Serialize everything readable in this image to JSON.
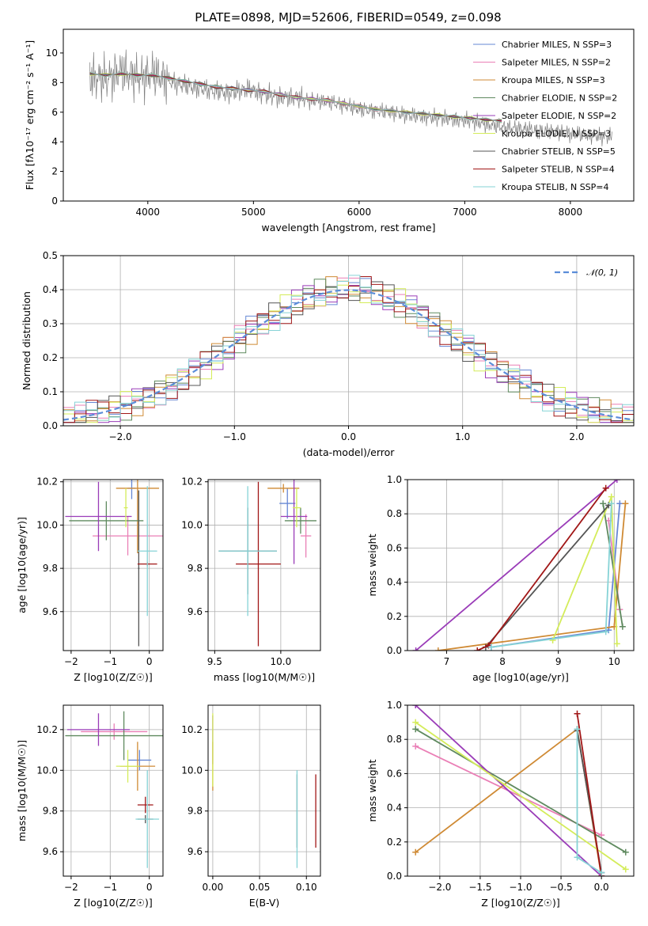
{
  "figure": {
    "title": "PLATE=0898, MJD=52606, FIBERID=0549, z=0.098"
  },
  "chart_data": [
    {
      "panel": "spectrum",
      "type": "line",
      "xlabel": "wavelength [Angstrom, rest frame]",
      "ylabel": "Flux [fλ10⁻¹⁷ erg cm⁻² s⁻¹ A⁻¹]",
      "xlim": [
        3200,
        8600
      ],
      "ylim": [
        0,
        11.6
      ],
      "xticks": [
        4000,
        5000,
        6000,
        7000,
        8000
      ],
      "yticks": [
        0,
        2,
        4,
        6,
        8,
        10
      ],
      "legend_position": "top-right",
      "observed": {
        "x": [
          3450,
          3600,
          3750,
          3900,
          4050,
          4200,
          4350,
          4500,
          4650,
          4800,
          4950,
          5100,
          5250,
          5400,
          5550,
          5700,
          5850,
          6000,
          6150,
          6300,
          6450,
          6600,
          6750,
          6900,
          7050,
          7200,
          7350,
          7500,
          7650,
          7800,
          7950,
          8100,
          8250,
          8400
        ],
        "y": [
          8.4,
          8.2,
          8.8,
          8.3,
          8.6,
          8.1,
          7.8,
          7.6,
          7.4,
          7.3,
          7.6,
          7.2,
          7.0,
          7.0,
          6.8,
          6.7,
          6.5,
          6.2,
          6.1,
          6.0,
          5.8,
          5.7,
          5.6,
          5.5,
          5.4,
          5.2,
          5.0,
          4.9,
          4.8,
          4.7,
          4.6,
          4.5,
          4.4,
          4.3
        ]
      },
      "model": {
        "x": [
          3450,
          3600,
          3750,
          3900,
          4050,
          4200,
          4350,
          4500,
          4650,
          4800,
          4950,
          5100,
          5250,
          5400,
          5550,
          5700,
          5850,
          6000,
          6150,
          6300,
          6450,
          6600,
          6750,
          6900,
          7050,
          7200,
          7350
        ],
        "y": [
          8.6,
          8.5,
          8.6,
          8.5,
          8.5,
          8.3,
          8.1,
          7.9,
          7.7,
          7.6,
          7.5,
          7.4,
          7.2,
          7.0,
          6.9,
          6.8,
          6.6,
          6.4,
          6.2,
          6.1,
          6.0,
          5.9,
          5.8,
          5.7,
          5.6,
          5.5,
          5.4
        ]
      },
      "series": [
        {
          "name": "Chabrier MILES, N_SSP=3",
          "color": "#6687d4"
        },
        {
          "name": "Salpeter MILES, N_SSP=2",
          "color": "#ea7fb6"
        },
        {
          "name": "Kroupa MILES, N_SSP=3",
          "color": "#cf8a34"
        },
        {
          "name": "Chabrier ELODIE, N_SSP=2",
          "color": "#5f8a5f"
        },
        {
          "name": "Salpeter ELODIE, N_SSP=2",
          "color": "#9a3cb8"
        },
        {
          "name": "Kroupa ELODIE, N_SSP=3",
          "color": "#d4ec5a"
        },
        {
          "name": "Chabrier STELIB, N_SSP=5",
          "color": "#555555"
        },
        {
          "name": "Salpeter STELIB, N_SSP=4",
          "color": "#a11717"
        },
        {
          "name": "Kroupa STELIB, N_SSP=4",
          "color": "#86d3d6"
        }
      ]
    },
    {
      "panel": "residuals",
      "type": "line",
      "xlabel": "(data-model)/error",
      "ylabel": "Normed distribution",
      "xlim": [
        -2.5,
        2.5
      ],
      "ylim": [
        0,
        0.5
      ],
      "xticks": [
        -2,
        -1,
        0,
        1,
        2
      ],
      "yticks": [
        0.0,
        0.1,
        0.2,
        0.3,
        0.4,
        0.5
      ],
      "grid": true,
      "legend_position": "top-right",
      "gaussian_label": "𝒩(0, 1)",
      "gaussian_color": "#5b8dd9",
      "series_colors": [
        "#6687d4",
        "#ea7fb6",
        "#cf8a34",
        "#5f8a5f",
        "#9a3cb8",
        "#d4ec5a",
        "#555555",
        "#a11717",
        "#86d3d6"
      ]
    },
    {
      "panel": "age_vs_Z",
      "type": "scatter",
      "xlabel": "Z [log10(Z/Z☉)]",
      "ylabel": "age  [log10(age/yr)]",
      "xlim": [
        -2.2,
        0.35
      ],
      "ylim": [
        9.42,
        10.21
      ],
      "xticks": [
        -2,
        -1,
        0
      ],
      "yticks": [
        9.6,
        9.8,
        10.0,
        10.2
      ],
      "grid": true,
      "points": [
        {
          "x": -0.45,
          "y": 10.17,
          "xerr": 0.1,
          "yerr": 0.05,
          "color": "#6687d4"
        },
        {
          "x": -0.55,
          "y": 9.95,
          "xerr": 0.9,
          "yerr": 0.09,
          "color": "#ea7fb6"
        },
        {
          "x": -0.3,
          "y": 10.17,
          "xerr": 0.55,
          "yerr": 0.3,
          "color": "#cf8a34"
        },
        {
          "x": -1.1,
          "y": 10.02,
          "xerr": 0.95,
          "yerr": 0.09,
          "color": "#5f8a5f"
        },
        {
          "x": -1.3,
          "y": 10.04,
          "xerr": 0.85,
          "yerr": 0.16,
          "color": "#9a3cb8"
        },
        {
          "x": -0.6,
          "y": 10.08,
          "xerr": 0.05,
          "yerr": 0.09,
          "color": "#d4ec5a"
        },
        {
          "x": -0.27,
          "y": 9.8,
          "xerr": 0.02,
          "yerr": 0.36,
          "color": "#555555"
        },
        {
          "x": -0.05,
          "y": 9.82,
          "xerr": 0.25,
          "yerr": 0.01,
          "color": "#a11717"
        },
        {
          "x": -0.05,
          "y": 9.88,
          "xerr": 0.25,
          "yerr": 0.3,
          "color": "#86d3d6"
        }
      ]
    },
    {
      "panel": "age_vs_mass",
      "type": "scatter",
      "xlabel": "mass [log10(M/M☉)]",
      "ylabel": "",
      "xlim": [
        9.45,
        10.3
      ],
      "ylim": [
        9.42,
        10.21
      ],
      "xticks": [
        9.5,
        10.0
      ],
      "yticks": [
        9.6,
        9.8,
        10.0,
        10.2
      ],
      "grid": true,
      "points": [
        {
          "x": 10.05,
          "y": 10.1,
          "xerr": 0.06,
          "yerr": 0.07,
          "color": "#6687d4"
        },
        {
          "x": 10.19,
          "y": 9.95,
          "xerr": 0.04,
          "yerr": 0.1,
          "color": "#ea7fb6"
        },
        {
          "x": 10.02,
          "y": 10.17,
          "xerr": 0.12,
          "yerr": 0.02,
          "color": "#cf8a34"
        },
        {
          "x": 10.15,
          "y": 10.02,
          "xerr": 0.12,
          "yerr": 0.06,
          "color": "#5f8a5f"
        },
        {
          "x": 10.1,
          "y": 10.04,
          "xerr": 0.1,
          "yerr": 0.22,
          "color": "#9a3cb8"
        },
        {
          "x": 10.12,
          "y": 10.08,
          "xerr": 0.03,
          "yerr": 0.09,
          "color": "#d4ec5a"
        },
        {
          "x": 9.75,
          "y": 9.88,
          "xerr": 0.22,
          "yerr": 0.2,
          "color": "#555555"
        },
        {
          "x": 9.83,
          "y": 9.82,
          "xerr": 0.17,
          "yerr": 0.38,
          "color": "#a11717"
        },
        {
          "x": 9.75,
          "y": 9.88,
          "xerr": 0.22,
          "yerr": 0.3,
          "color": "#86d3d6"
        }
      ]
    },
    {
      "panel": "massweight_vs_age",
      "type": "line",
      "xlabel": "age  [log10(age/yr)]",
      "ylabel": "mass weight",
      "xlim": [
        6.3,
        10.35
      ],
      "ylim": [
        0,
        1
      ],
      "xticks": [
        7,
        8,
        9,
        10
      ],
      "yticks": [
        0.0,
        0.2,
        0.4,
        0.6,
        0.8,
        1.0
      ],
      "grid": true,
      "series": [
        {
          "color": "#6687d4",
          "x": [
            7.8,
            9.9,
            10.1
          ],
          "y": [
            0.02,
            0.12,
            0.86
          ]
        },
        {
          "color": "#ea7fb6",
          "x": [
            9.9,
            10.1
          ],
          "y": [
            0.76,
            0.24
          ]
        },
        {
          "color": "#cf8a34",
          "x": [
            6.85,
            10.0,
            10.2
          ],
          "y": [
            0.0,
            0.14,
            0.86
          ]
        },
        {
          "color": "#5f8a5f",
          "x": [
            9.8,
            10.15
          ],
          "y": [
            0.86,
            0.14
          ]
        },
        {
          "color": "#9a3cb8",
          "x": [
            6.45,
            10.05
          ],
          "y": [
            0.0,
            1.0
          ]
        },
        {
          "color": "#d4ec5a",
          "x": [
            8.9,
            9.95,
            10.05
          ],
          "y": [
            0.06,
            0.9,
            0.04
          ]
        },
        {
          "color": "#555555",
          "x": [
            7.7,
            9.9
          ],
          "y": [
            0.02,
            0.85
          ]
        },
        {
          "color": "#a11717",
          "x": [
            7.55,
            7.75,
            9.85
          ],
          "y": [
            0.0,
            0.03,
            0.95
          ]
        },
        {
          "color": "#86d3d6",
          "x": [
            7.8,
            9.85,
            9.95
          ],
          "y": [
            0.02,
            0.11,
            0.86
          ]
        }
      ]
    },
    {
      "panel": "mass_vs_Z",
      "type": "scatter",
      "xlabel": "Z [log10(Z/Z☉)]",
      "ylabel": "mass [log10(M/M☉)]",
      "xlim": [
        -2.2,
        0.35
      ],
      "ylim": [
        9.48,
        10.32
      ],
      "xticks": [
        -2,
        -1,
        0
      ],
      "yticks": [
        9.6,
        9.8,
        10.0,
        10.2
      ],
      "grid": true,
      "points": [
        {
          "x": -0.25,
          "y": 10.05,
          "xerr": 0.3,
          "yerr": 0.05,
          "color": "#6687d4"
        },
        {
          "x": -0.9,
          "y": 10.19,
          "xerr": 0.85,
          "yerr": 0.04,
          "color": "#ea7fb6"
        },
        {
          "x": -0.3,
          "y": 10.02,
          "xerr": 0.45,
          "yerr": 0.12,
          "color": "#cf8a34"
        },
        {
          "x": -0.65,
          "y": 10.17,
          "xerr": 1.5,
          "yerr": 0.12,
          "color": "#5f8a5f"
        },
        {
          "x": -1.3,
          "y": 10.2,
          "xerr": 0.8,
          "yerr": 0.08,
          "color": "#9a3cb8"
        },
        {
          "x": -0.55,
          "y": 10.02,
          "xerr": 0.3,
          "yerr": 0.08,
          "color": "#d4ec5a"
        },
        {
          "x": -0.1,
          "y": 9.76,
          "xerr": 0.2,
          "yerr": 0.02,
          "color": "#555555"
        },
        {
          "x": -0.1,
          "y": 9.83,
          "xerr": 0.2,
          "yerr": 0.04,
          "color": "#a11717"
        },
        {
          "x": -0.05,
          "y": 9.76,
          "xerr": 0.3,
          "yerr": 0.24,
          "color": "#86d3d6"
        }
      ]
    },
    {
      "panel": "mass_vs_EBV",
      "type": "scatter",
      "xlabel": "E(B-V)",
      "ylabel": "",
      "xlim": [
        -0.005,
        0.115
      ],
      "ylim": [
        9.48,
        10.32
      ],
      "xticks": [
        0.0,
        0.05,
        0.1
      ],
      "yticks": [
        9.6,
        9.8,
        10.0,
        10.2
      ],
      "grid": true,
      "points": [
        {
          "x": 0.0,
          "y": 10.15,
          "yerr": 0.12,
          "color": "#9a3cb8"
        },
        {
          "x": 0.0,
          "y": 10.02,
          "yerr": 0.12,
          "color": "#cf8a34"
        },
        {
          "x": 0.0,
          "y": 10.1,
          "yerr": 0.18,
          "color": "#d4ec5a"
        },
        {
          "x": 0.09,
          "y": 9.8,
          "yerr": 0.18,
          "color": "#555555"
        },
        {
          "x": 0.09,
          "y": 9.76,
          "yerr": 0.24,
          "color": "#86d3d6"
        },
        {
          "x": 0.11,
          "y": 9.8,
          "yerr": 0.18,
          "color": "#a11717"
        }
      ]
    },
    {
      "panel": "massweight_vs_Z",
      "type": "line",
      "xlabel": "Z [log10(Z/Z☉)]",
      "ylabel": "mass weight",
      "xlim": [
        -2.4,
        0.4
      ],
      "ylim": [
        0,
        1
      ],
      "xticks": [
        -2.0,
        -1.5,
        -1.0,
        -0.5,
        0.0
      ],
      "yticks": [
        0.0,
        0.2,
        0.4,
        0.6,
        0.8,
        1.0
      ],
      "grid": true,
      "series": [
        {
          "color": "#6687d4",
          "x": [
            -0.3,
            0.0
          ],
          "y": [
            0.86,
            0.02
          ]
        },
        {
          "color": "#ea7fb6",
          "x": [
            -2.3,
            0.0
          ],
          "y": [
            0.76,
            0.24
          ]
        },
        {
          "color": "#cf8a34",
          "x": [
            -2.3,
            -0.3,
            0.0
          ],
          "y": [
            0.14,
            0.86,
            0.0
          ]
        },
        {
          "color": "#5f8a5f",
          "x": [
            -2.3,
            0.3
          ],
          "y": [
            0.86,
            0.14
          ]
        },
        {
          "color": "#9a3cb8",
          "x": [
            -2.3,
            0.0
          ],
          "y": [
            1.0,
            0.0
          ]
        },
        {
          "color": "#d4ec5a",
          "x": [
            -2.3,
            0.3
          ],
          "y": [
            0.9,
            0.04
          ]
        },
        {
          "color": "#555555",
          "x": [
            -0.3,
            0.0
          ],
          "y": [
            0.85,
            0.02
          ]
        },
        {
          "color": "#a11717",
          "x": [
            -0.3,
            0.0
          ],
          "y": [
            0.95,
            0.0
          ]
        },
        {
          "color": "#86d3d6",
          "x": [
            -0.3,
            -0.3,
            0.0
          ],
          "y": [
            0.86,
            0.11,
            0.02
          ]
        }
      ]
    }
  ]
}
